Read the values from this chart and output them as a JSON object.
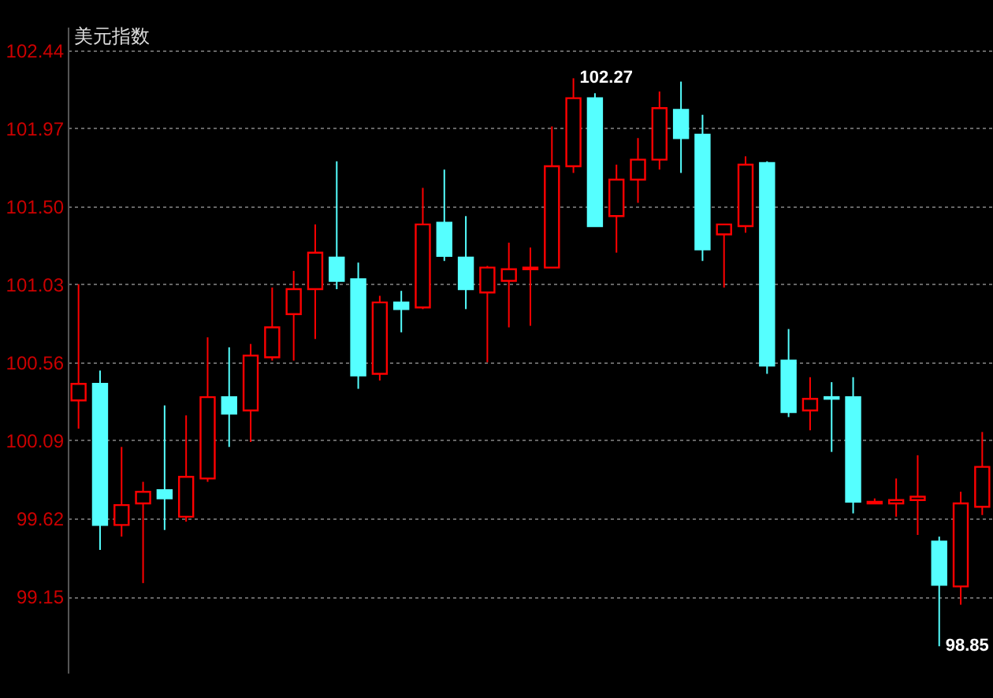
{
  "chart_data": {
    "type": "candlestick",
    "title": "美元指数",
    "categories": [
      null,
      null,
      null,
      null,
      null,
      null,
      null,
      null,
      null,
      null,
      null,
      null,
      null,
      null,
      null,
      null,
      null,
      null,
      null,
      null,
      null,
      null,
      null,
      null,
      null,
      null,
      null,
      null,
      null,
      null,
      null,
      null,
      null,
      null,
      null,
      null,
      null,
      null,
      null,
      null,
      null,
      null,
      null
    ],
    "ohlc": [
      [
        100.33,
        101.03,
        100.16,
        100.43
      ],
      [
        100.43,
        100.51,
        99.43,
        99.58
      ],
      [
        99.58,
        100.05,
        99.51,
        99.7
      ],
      [
        99.71,
        99.84,
        99.23,
        99.78
      ],
      [
        99.79,
        100.3,
        99.55,
        99.74
      ],
      [
        99.63,
        100.24,
        99.6,
        99.87
      ],
      [
        99.86,
        100.71,
        99.84,
        100.35
      ],
      [
        100.35,
        100.65,
        100.05,
        100.25
      ],
      [
        100.27,
        100.67,
        100.08,
        100.6
      ],
      [
        100.59,
        101.01,
        100.57,
        100.77
      ],
      [
        100.85,
        101.11,
        100.57,
        101.0
      ],
      [
        101.0,
        101.39,
        100.7,
        101.22
      ],
      [
        101.19,
        101.77,
        101.0,
        101.05
      ],
      [
        101.06,
        101.16,
        100.4,
        100.48
      ],
      [
        100.49,
        100.96,
        100.45,
        100.92
      ],
      [
        100.92,
        100.99,
        100.74,
        100.88
      ],
      [
        100.89,
        101.61,
        100.88,
        101.39
      ],
      [
        101.4,
        101.72,
        101.17,
        101.2
      ],
      [
        101.19,
        101.44,
        100.88,
        101.0
      ],
      [
        100.98,
        101.14,
        100.56,
        101.13
      ],
      [
        101.05,
        101.28,
        100.77,
        101.12
      ],
      [
        101.12,
        101.25,
        100.78,
        101.13
      ],
      [
        101.13,
        101.98,
        101.13,
        101.74
      ],
      [
        101.74,
        102.27,
        101.7,
        102.15
      ],
      [
        102.15,
        102.18,
        101.38,
        101.38
      ],
      [
        101.44,
        101.75,
        101.22,
        101.66
      ],
      [
        101.66,
        101.91,
        101.52,
        101.78
      ],
      [
        101.78,
        102.19,
        101.72,
        102.09
      ],
      [
        102.08,
        102.25,
        101.7,
        101.91
      ],
      [
        101.93,
        102.05,
        101.17,
        101.24
      ],
      [
        101.33,
        101.39,
        101.01,
        101.39
      ],
      [
        101.38,
        101.8,
        101.34,
        101.75
      ],
      [
        101.76,
        101.77,
        100.49,
        100.54
      ],
      [
        100.57,
        100.76,
        100.23,
        100.26
      ],
      [
        100.27,
        100.47,
        100.15,
        100.34
      ],
      [
        100.35,
        100.44,
        100.02,
        100.34
      ],
      [
        100.35,
        100.47,
        99.65,
        99.72
      ],
      [
        99.71,
        99.74,
        99.71,
        99.72
      ],
      [
        99.71,
        99.86,
        99.63,
        99.73
      ],
      [
        99.73,
        100.0,
        99.52,
        99.75
      ],
      [
        99.48,
        99.51,
        98.85,
        99.22
      ],
      [
        99.21,
        99.78,
        99.1,
        99.71
      ],
      [
        99.69,
        100.14,
        99.64,
        99.93
      ]
    ],
    "colors": [
      "#ff0000",
      "#55ffff",
      "#ff0000",
      "#ff0000",
      "#55ffff",
      "#ff0000",
      "#ff0000",
      "#55ffff",
      "#ff0000",
      "#ff0000",
      "#ff0000",
      "#ff0000",
      "#55ffff",
      "#55ffff",
      "#ff0000",
      "#55ffff",
      "#ff0000",
      "#55ffff",
      "#55ffff",
      "#ff0000",
      "#ff0000",
      "#ff0000",
      "#ff0000",
      "#ff0000",
      "#55ffff",
      "#ff0000",
      "#ff0000",
      "#ff0000",
      "#55ffff",
      "#55ffff",
      "#ff0000",
      "#ff0000",
      "#55ffff",
      "#55ffff",
      "#ff0000",
      "#55ffff",
      "#55ffff",
      "#ff0000",
      "#ff0000",
      "#ff0000",
      "#55ffff",
      "#ff0000",
      "#ff0000"
    ],
    "ylim": [
      98.69,
      102.58
    ],
    "yticks": [
      {
        "value": 99.15,
        "label": "99.15"
      },
      {
        "value": 99.62,
        "label": "99.62"
      },
      {
        "value": 100.09,
        "label": "100.09"
      },
      {
        "value": 100.56,
        "label": "100.56"
      },
      {
        "value": 101.03,
        "label": "101.03"
      },
      {
        "value": 101.5,
        "label": "101.50"
      },
      {
        "value": 101.97,
        "label": "101.97"
      },
      {
        "value": 102.44,
        "label": "102.44"
      }
    ],
    "grid": "y",
    "annotations": [
      "102.27",
      "98.85"
    ]
  }
}
